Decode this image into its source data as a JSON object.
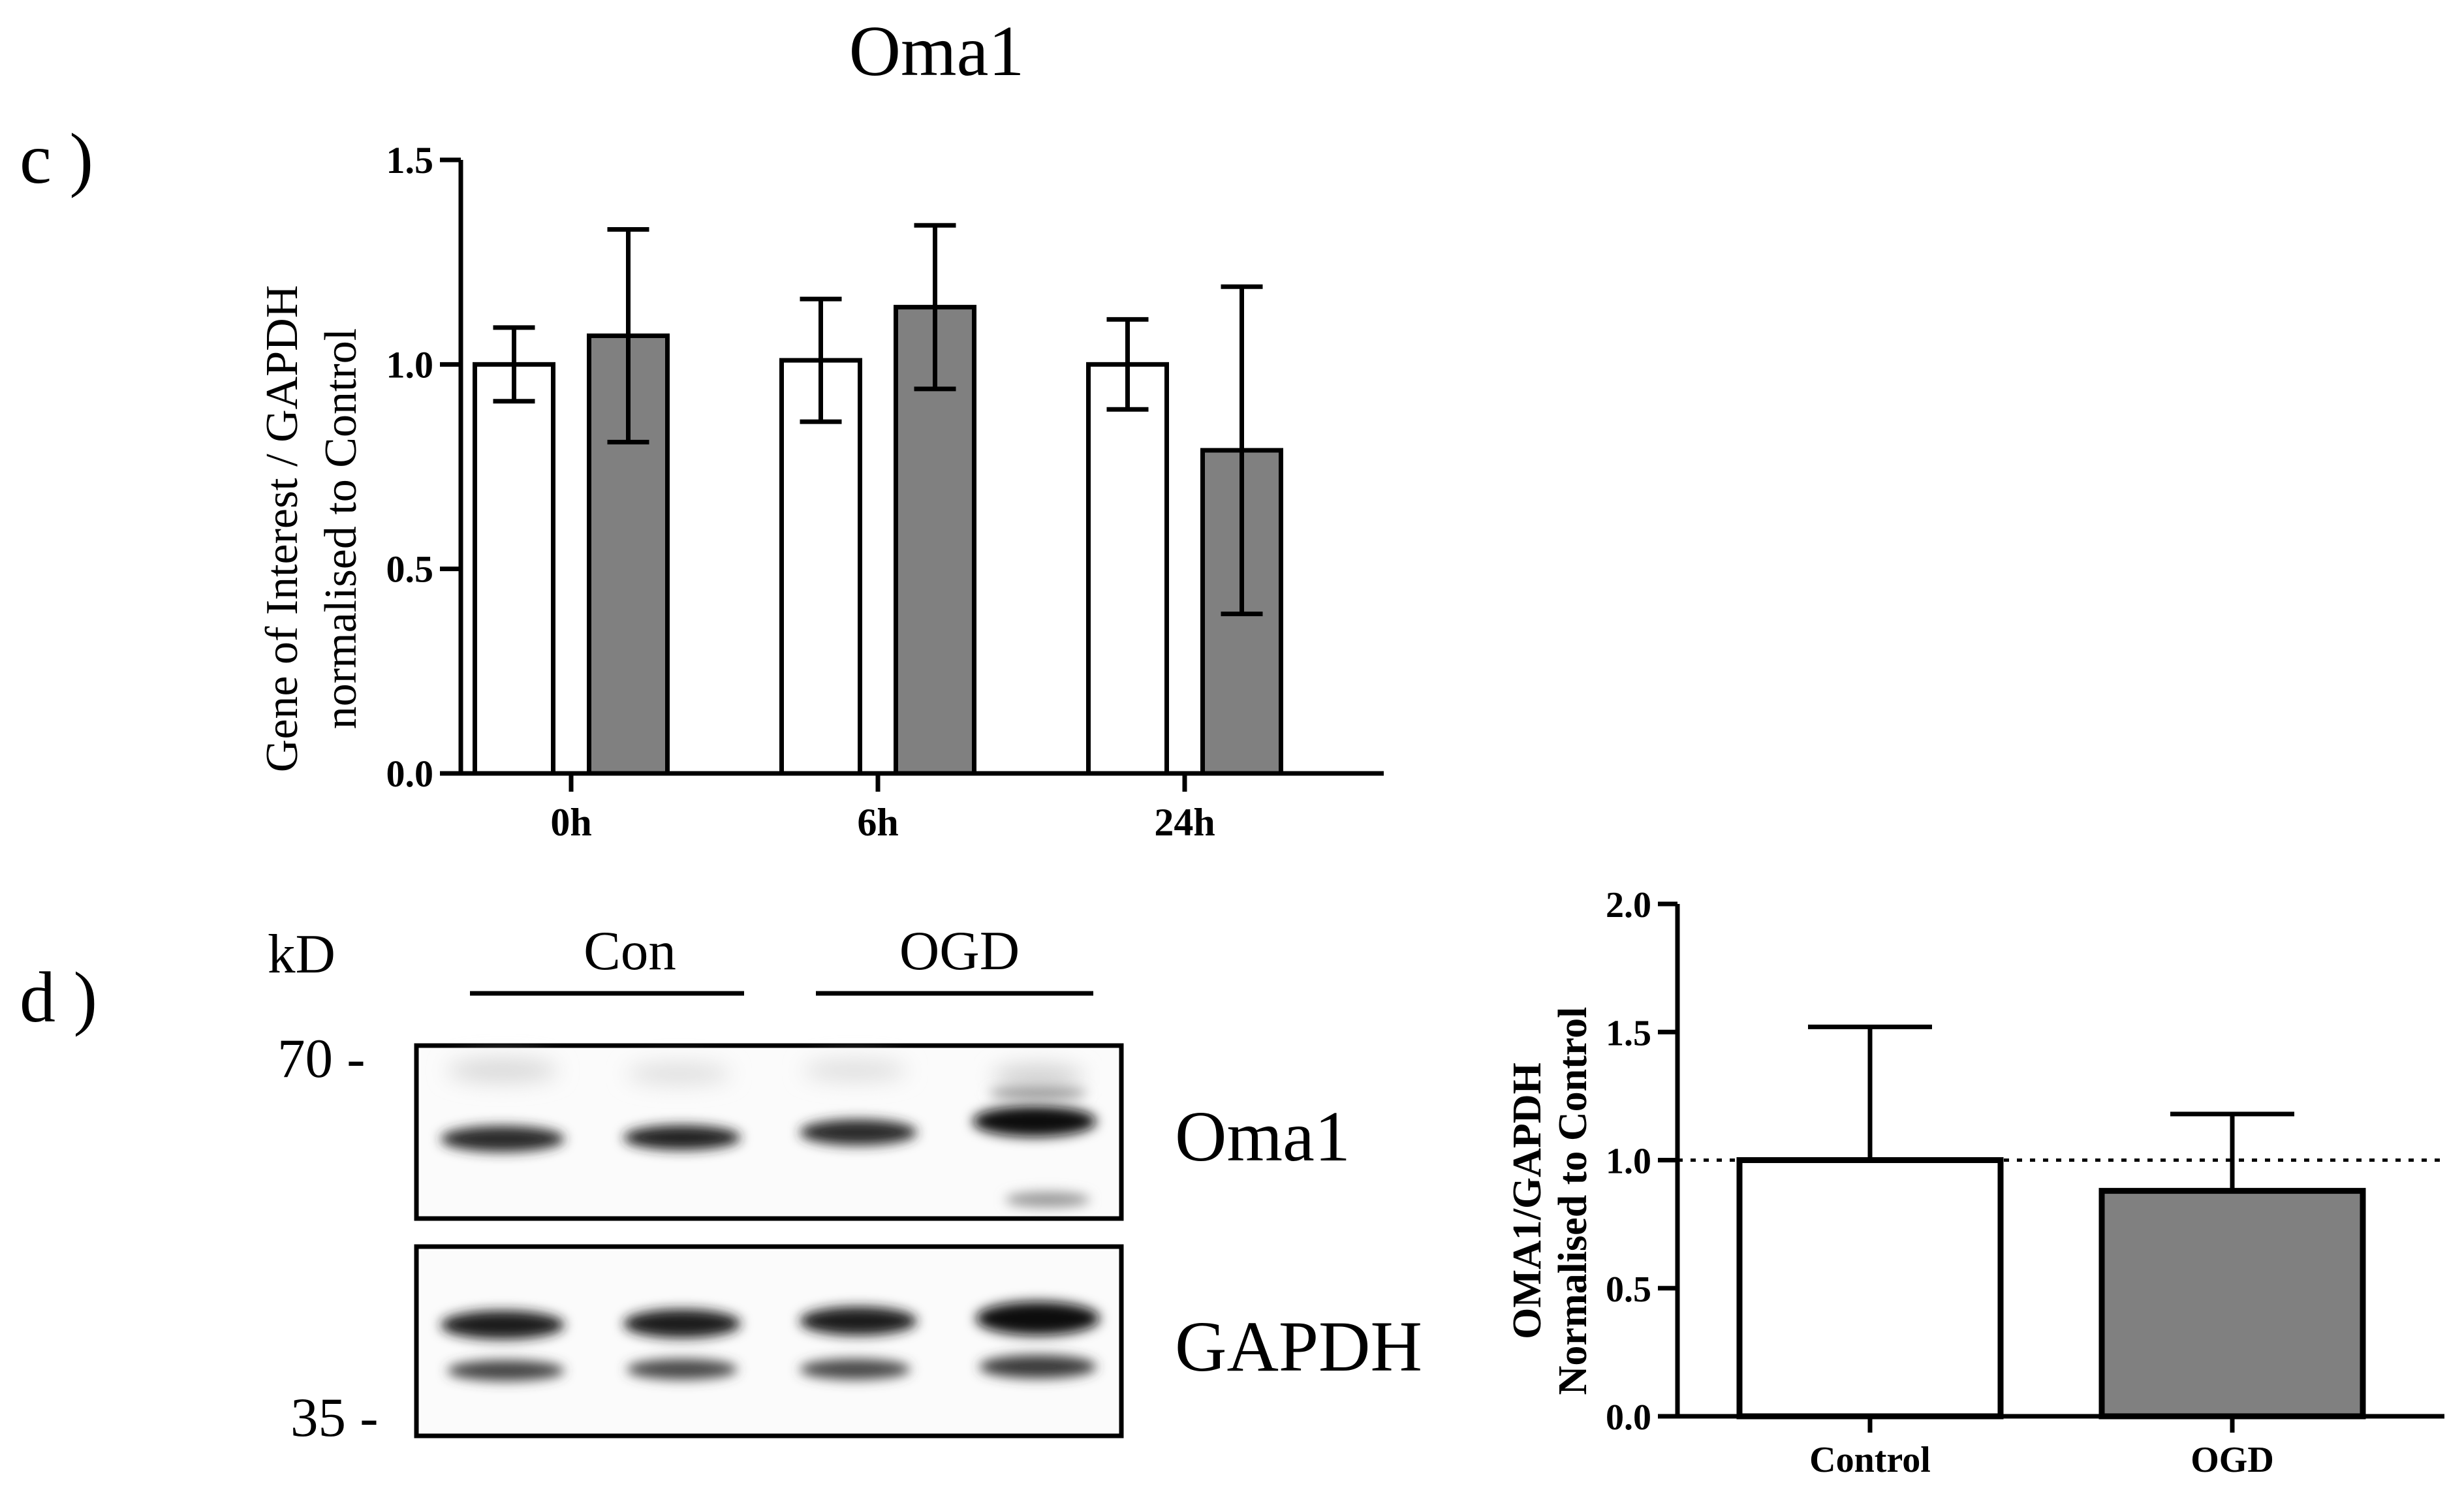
{
  "panels": {
    "c": {
      "label": "c )"
    },
    "d": {
      "label": "d )"
    }
  },
  "chart_data": [
    {
      "type": "bar",
      "title": "Oma1",
      "ylabel_line1": "Gene of Interest / GAPDH",
      "ylabel_line2": "normalised to Control",
      "categories": [
        "0h",
        "6h",
        "24h"
      ],
      "ylim": [
        0,
        1.5
      ],
      "yticks": [
        "0.0",
        "0.5",
        "1.0",
        "1.5"
      ],
      "series": [
        {
          "color": "#ffffff",
          "values": [
            1.0,
            1.01,
            1.0
          ],
          "errors": [
            0.09,
            0.15,
            0.11
          ]
        },
        {
          "color": "#808080",
          "values": [
            1.07,
            1.14,
            0.79
          ],
          "errors": [
            0.26,
            0.2,
            0.4
          ]
        }
      ]
    },
    {
      "type": "bar",
      "ylabel_line1": "OMA1/GAPDH",
      "ylabel_line2": "Normalised to Control",
      "categories": [
        "Control",
        "OGD"
      ],
      "ylim": [
        0,
        2.0
      ],
      "yticks": [
        "0.0",
        "0.5",
        "1.0",
        "1.5",
        "2.0"
      ],
      "values": [
        1.0,
        0.88
      ],
      "errors": [
        0.52,
        0.3
      ],
      "colors": [
        "#ffffff",
        "#808080"
      ],
      "reference_line": 1.0
    }
  ],
  "blot": {
    "unit": "kD",
    "groups": [
      "Con",
      "OGD"
    ],
    "markers": [
      "70 -",
      "35 -"
    ],
    "bands": [
      "Oma1",
      "GAPDH"
    ]
  }
}
